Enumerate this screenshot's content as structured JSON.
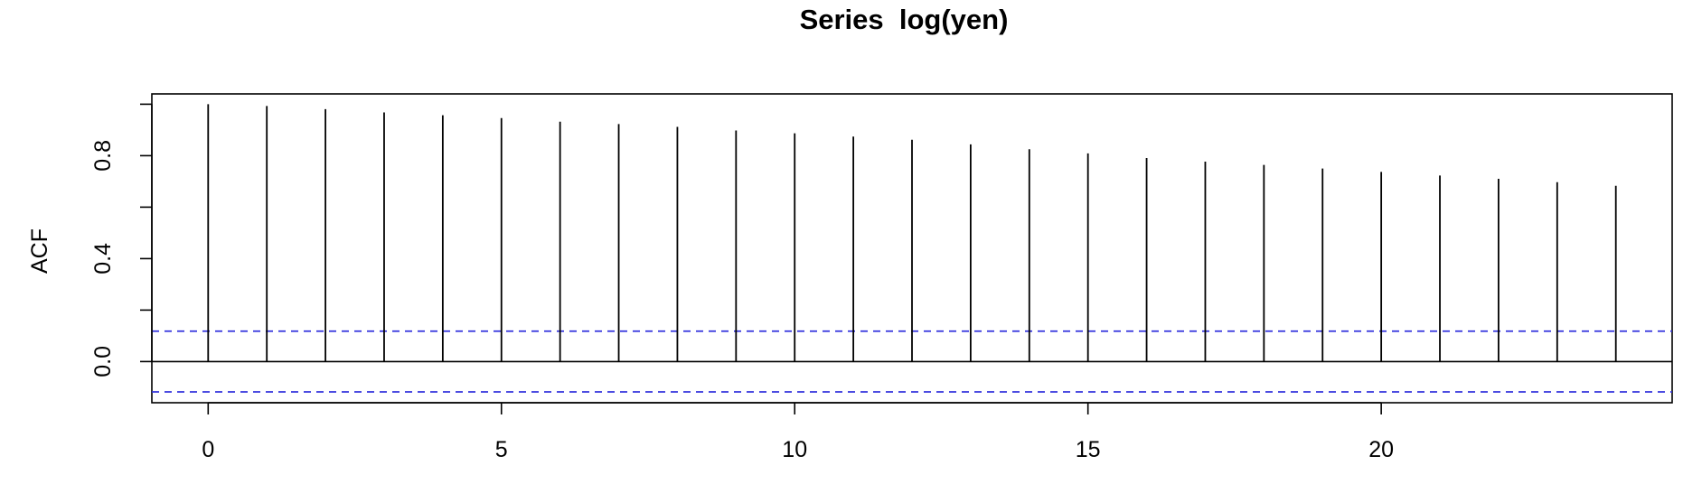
{
  "chart_data": {
    "type": "bar",
    "title": "Series  log(yen)",
    "xlabel": "",
    "ylabel": "ACF",
    "x": [
      0,
      1,
      2,
      3,
      4,
      5,
      6,
      7,
      8,
      9,
      10,
      11,
      12,
      13,
      14,
      15,
      16,
      17,
      18,
      19,
      20,
      21,
      22,
      23,
      24
    ],
    "values": [
      1.0,
      0.993,
      0.981,
      0.968,
      0.957,
      0.946,
      0.932,
      0.923,
      0.912,
      0.898,
      0.887,
      0.874,
      0.862,
      0.844,
      0.825,
      0.809,
      0.791,
      0.777,
      0.764,
      0.75,
      0.737,
      0.723,
      0.71,
      0.697,
      0.683
    ],
    "x_ticks": [
      0,
      5,
      10,
      15,
      20
    ],
    "x_tick_labels": [
      "0",
      "5",
      "10",
      "15",
      "20"
    ],
    "y_ticks": [
      0.0,
      0.4,
      0.8
    ],
    "y_tick_labels": [
      "0.0",
      "0.4",
      "0.8"
    ],
    "y_minor_ticks": [
      0.0,
      0.2,
      0.4,
      0.6,
      0.8,
      1.0
    ],
    "xlim": [
      -0.96,
      24.96
    ],
    "ylim": [
      -0.16,
      1.04
    ],
    "confidence_bound": 0.118,
    "colors": {
      "spike": "#000000",
      "zero_line": "#000000",
      "confidence": "#3333dd",
      "frame": "#000000"
    },
    "grid": false
  }
}
